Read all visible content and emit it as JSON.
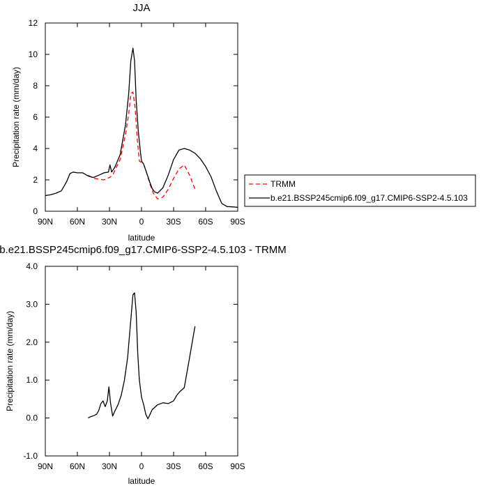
{
  "chart_data": [
    {
      "type": "line",
      "title": "JJA",
      "xlabel": "latitude",
      "ylabel": "Precipitation rate (mm/day)",
      "xlim": [
        90,
        -90
      ],
      "ylim": [
        0,
        12
      ],
      "x_ticks": [
        90,
        60,
        30,
        0,
        -30,
        -60,
        -90
      ],
      "x_tick_labels": [
        "90N",
        "60N",
        "30N",
        "0",
        "30S",
        "60S",
        "90S"
      ],
      "y_ticks": [
        0,
        2,
        4,
        6,
        8,
        10,
        12
      ],
      "y_tick_labels": [
        "0",
        "2",
        "4",
        "6",
        "8",
        "10",
        "12"
      ],
      "grid": false,
      "legend_position": "right",
      "series": [
        {
          "name": "TRMM",
          "color": "#ff0000",
          "dash": true,
          "x": [
            50,
            45,
            40,
            35,
            30,
            27,
            25,
            20,
            15,
            12,
            10,
            8,
            6,
            4,
            2,
            0,
            -2,
            -5,
            -8,
            -11,
            -15,
            -20,
            -25,
            -30,
            -35,
            -40,
            -45,
            -50
          ],
          "y": [
            2.3,
            2.1,
            2.05,
            2.0,
            2.15,
            2.3,
            2.6,
            3.3,
            4.9,
            6.2,
            7.5,
            7.6,
            6.6,
            4.6,
            3.2,
            3.1,
            3.0,
            2.4,
            1.7,
            1.15,
            0.78,
            0.9,
            1.4,
            2.1,
            2.7,
            2.95,
            2.3,
            1.4
          ]
        },
        {
          "name": "b.e21.BSSP245cmip6.f09_g17.CMIP6-SSP2-4.5.103",
          "color": "#000000",
          "dash": false,
          "x": [
            90,
            85,
            80,
            75,
            70,
            67,
            64,
            60,
            55,
            50,
            45,
            40,
            35,
            31,
            29.5,
            28,
            25,
            20,
            15,
            12,
            10,
            8,
            6.5,
            5,
            3,
            1,
            0,
            -2,
            -5,
            -8,
            -10,
            -12,
            -15,
            -20,
            -25,
            -30,
            -35,
            -40,
            -45,
            -50,
            -55,
            -60,
            -65,
            -70,
            -75,
            -80,
            -85,
            -90
          ],
          "y": [
            1.0,
            1.05,
            1.15,
            1.3,
            1.9,
            2.4,
            2.5,
            2.45,
            2.45,
            2.25,
            2.15,
            2.3,
            2.45,
            2.5,
            2.95,
            2.5,
            2.8,
            3.6,
            5.5,
            7.5,
            9.6,
            10.4,
            9.6,
            7.1,
            5.1,
            3.75,
            3.2,
            3.0,
            2.4,
            1.8,
            1.45,
            1.25,
            1.15,
            1.5,
            2.3,
            3.3,
            3.9,
            4.0,
            3.9,
            3.7,
            3.35,
            2.85,
            2.2,
            1.3,
            0.5,
            0.3,
            0.28,
            0.25
          ]
        }
      ]
    },
    {
      "type": "line",
      "title": "b.e21.BSSP245cmip6.f09_g17.CMIP6-SSP2-4.5.103 - TRMM",
      "xlabel": "latitude",
      "ylabel": "Precipitation rate (mm/day)",
      "xlim": [
        90,
        -90
      ],
      "ylim": [
        -1.0,
        4.0
      ],
      "x_ticks": [
        90,
        60,
        30,
        0,
        -30,
        -60,
        -90
      ],
      "x_tick_labels": [
        "90N",
        "60N",
        "30N",
        "0",
        "30S",
        "60S",
        "90S"
      ],
      "y_ticks": [
        -1.0,
        0.0,
        1.0,
        2.0,
        3.0,
        4.0
      ],
      "y_tick_labels": [
        "-1.0",
        "0.0",
        "1.0",
        "2.0",
        "3.0",
        "4.0"
      ],
      "grid": false,
      "series": [
        {
          "name": "",
          "color": "#000000",
          "dash": false,
          "x": [
            50,
            48,
            46,
            44,
            42,
            40,
            38,
            36,
            34,
            32,
            30.5,
            29,
            27,
            25,
            22,
            19,
            16,
            13,
            10,
            8,
            6.5,
            5,
            3.5,
            2,
            0,
            -2,
            -4,
            -6,
            -8,
            -10,
            -15,
            -20,
            -25,
            -30,
            -33,
            -36,
            -40,
            -45,
            -50
          ],
          "y": [
            0.0,
            0.03,
            0.05,
            0.07,
            0.1,
            0.2,
            0.38,
            0.45,
            0.3,
            0.45,
            0.82,
            0.4,
            0.05,
            0.18,
            0.35,
            0.6,
            1.0,
            1.6,
            2.6,
            3.25,
            3.3,
            2.8,
            1.7,
            1.0,
            0.55,
            0.35,
            0.1,
            -0.02,
            0.1,
            0.22,
            0.35,
            0.4,
            0.38,
            0.45,
            0.6,
            0.7,
            0.8,
            1.6,
            2.42
          ]
        }
      ]
    }
  ]
}
